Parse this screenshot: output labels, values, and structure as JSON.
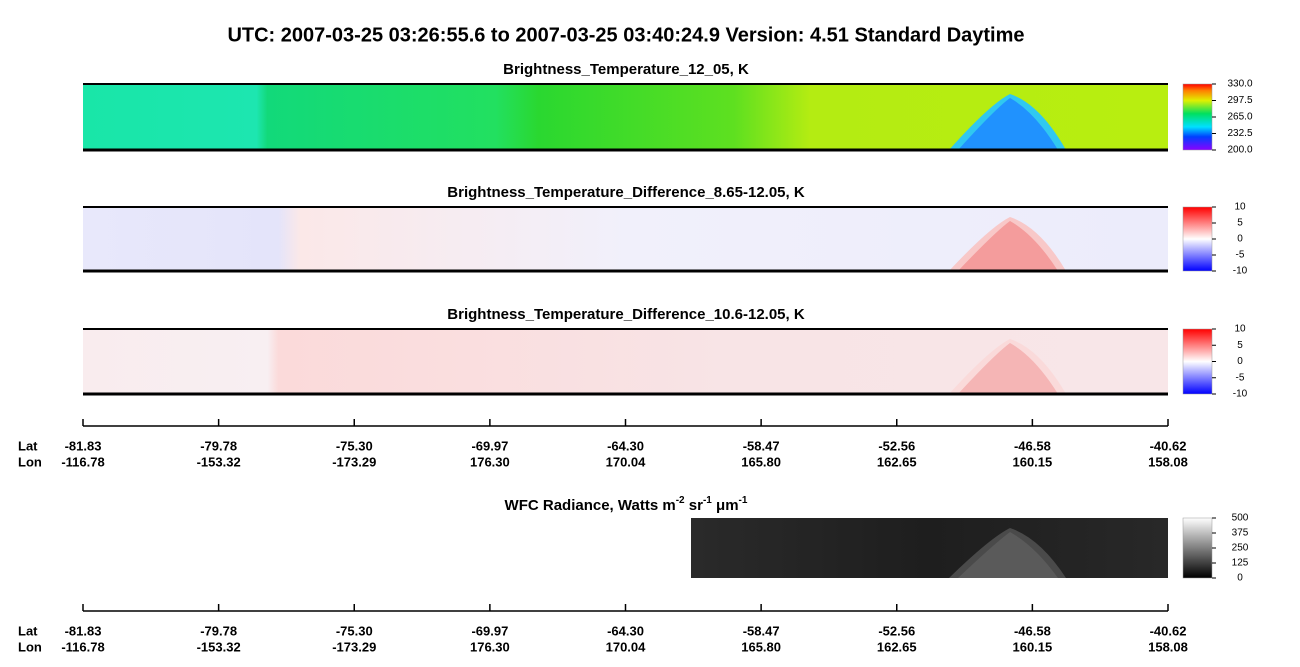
{
  "header": {
    "title": "UTC:  2007-03-25   03:26:55.6  to  2007-03-25   03:40:24.9    Version: 4.51  Standard Daytime"
  },
  "panels": [
    {
      "title": "Brightness_Temperature_12_05, K",
      "colorbar": [
        "330.0",
        "297.5",
        "265.0",
        "232.5",
        "200.0"
      ]
    },
    {
      "title": "Brightness_Temperature_Difference_8.65-12.05, K",
      "colorbar": [
        "10",
        "5",
        "0",
        "-5",
        "-10"
      ]
    },
    {
      "title": "Brightness_Temperature_Difference_10.6-12.05, K",
      "colorbar": [
        "10",
        "5",
        "0",
        "-5",
        "-10"
      ]
    },
    {
      "title_parts": [
        "WFC Radiance, Watts m",
        "-2",
        " sr",
        "-1",
        " μm",
        "-1"
      ],
      "colorbar": [
        "500",
        "375",
        "250",
        "125",
        "0"
      ]
    }
  ],
  "axis": {
    "lat_label": "Lat",
    "lon_label": "Lon",
    "lat": [
      "-81.83",
      "-79.78",
      "-75.30",
      "-69.97",
      "-64.30",
      "-58.47",
      "-52.56",
      "-46.58",
      "-40.62"
    ],
    "lon": [
      "-116.78",
      "-153.32",
      "-173.29",
      "176.30",
      "170.04",
      "165.80",
      "162.65",
      "160.15",
      "158.08"
    ]
  }
}
